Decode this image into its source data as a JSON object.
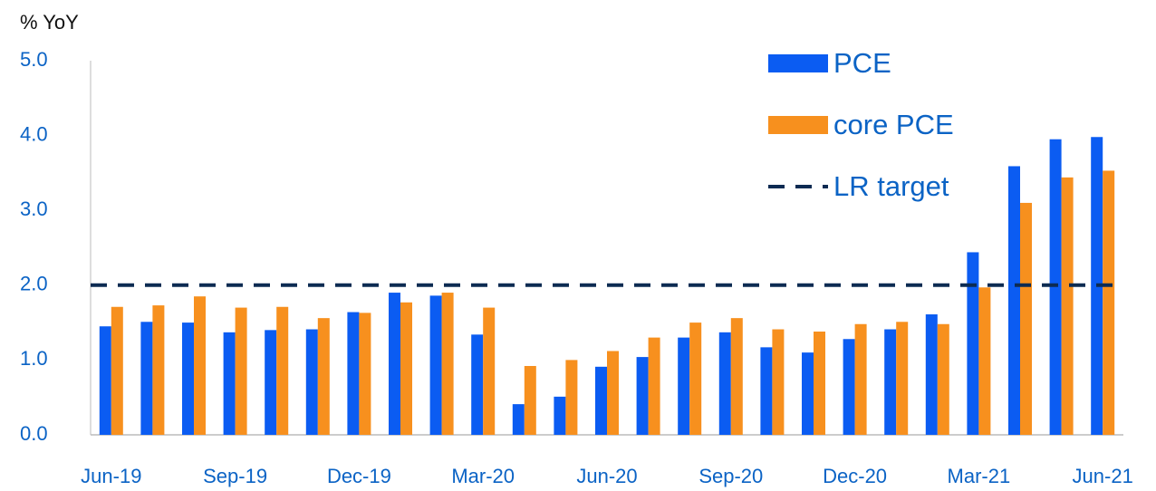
{
  "chart_data": {
    "type": "bar",
    "y_axis_label": "% YoY",
    "categories": [
      "Jun-19",
      null,
      null,
      "Sep-19",
      null,
      null,
      "Dec-19",
      null,
      null,
      "Mar-20",
      null,
      null,
      "Jun-20",
      null,
      null,
      "Sep-20",
      null,
      null,
      "Dec-20",
      null,
      null,
      "Mar-21",
      null,
      null,
      "Jun-21"
    ],
    "series": [
      {
        "name": "PCE",
        "color": "#0b5cf2",
        "values": [
          1.45,
          1.51,
          1.5,
          1.37,
          1.4,
          1.41,
          1.64,
          1.9,
          1.86,
          1.34,
          0.41,
          0.51,
          0.91,
          1.04,
          1.3,
          1.37,
          1.17,
          1.1,
          1.28,
          1.41,
          1.61,
          2.44,
          3.59,
          3.95,
          3.98
        ]
      },
      {
        "name": "core PCE",
        "color": "#f7901e",
        "values": [
          1.71,
          1.73,
          1.85,
          1.7,
          1.71,
          1.56,
          1.63,
          1.77,
          1.9,
          1.7,
          0.92,
          1.0,
          1.12,
          1.3,
          1.5,
          1.56,
          1.41,
          1.38,
          1.48,
          1.51,
          1.48,
          1.97,
          3.1,
          3.44,
          3.53
        ]
      }
    ],
    "reference_lines": [
      {
        "name": "LR target",
        "value": 2,
        "color": "#0d2b52",
        "style": "dashed"
      }
    ],
    "ylim": [
      0,
      5
    ],
    "yticks": [
      {
        "value": 0,
        "label": "0.0"
      },
      {
        "value": 1,
        "label": "1.0"
      },
      {
        "value": 2,
        "label": "2.0"
      },
      {
        "value": 3,
        "label": "3.0"
      },
      {
        "value": 4,
        "label": "4.0"
      },
      {
        "value": 5,
        "label": "5.0"
      }
    ],
    "grid": false,
    "legend": "upper right"
  }
}
